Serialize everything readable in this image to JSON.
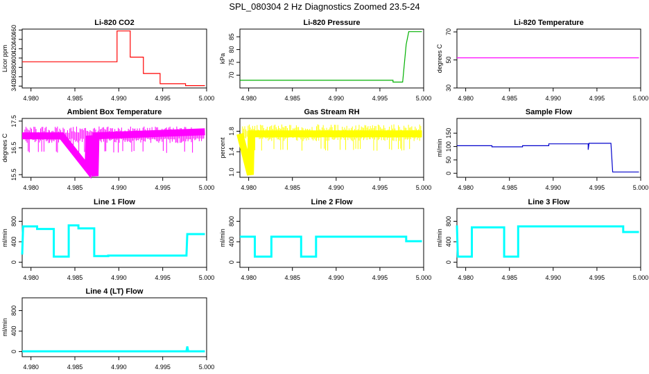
{
  "figure": {
    "title": "SPL_080304  2 Hz Diagnostics Zoomed 23.5-24"
  },
  "chart_data": [
    {
      "type": "line",
      "title": "Li-820 CO2",
      "ylabel": "Licor ppm",
      "xlabel": "",
      "color": "#ff0000",
      "xlim": [
        4.979,
        5.0
      ],
      "ylim": [
        336,
        462
      ],
      "xticks": [
        "4.980",
        "4.985",
        "4.990",
        "4.995",
        "5.000"
      ],
      "yticks": [
        "340",
        "360",
        "380",
        "400",
        "420",
        "440",
        "460"
      ],
      "series": [
        {
          "name": "CO2",
          "points": [
            [
              4.979,
              392
            ],
            [
              4.9898,
              392
            ],
            [
              4.9898,
              458
            ],
            [
              4.9913,
              458
            ],
            [
              4.9913,
              402
            ],
            [
              4.9928,
              402
            ],
            [
              4.9928,
              367
            ],
            [
              4.9947,
              367
            ],
            [
              4.9947,
              345
            ],
            [
              4.9976,
              345
            ],
            [
              4.9976,
              341
            ],
            [
              4.9998,
              341
            ]
          ]
        }
      ]
    },
    {
      "type": "line",
      "title": "Li-820 Pressure",
      "ylabel": "kPa",
      "xlabel": "",
      "color": "#00b000",
      "xlim": [
        4.979,
        5.0
      ],
      "ylim": [
        65,
        88
      ],
      "xticks": [
        "4.980",
        "4.985",
        "4.990",
        "4.995",
        "5.000"
      ],
      "yticks": [
        "70",
        "75",
        "80",
        "85"
      ],
      "series": [
        {
          "name": "Pressure",
          "points": [
            [
              4.979,
              68
            ],
            [
              4.9965,
              68
            ],
            [
              4.9965,
              67.3
            ],
            [
              4.9976,
              67.3
            ],
            [
              4.998,
              82
            ],
            [
              4.9983,
              87
            ],
            [
              4.9998,
              87
            ]
          ]
        }
      ]
    },
    {
      "type": "line",
      "title": "Li-820 Temperature",
      "ylabel": "degrees C",
      "xlabel": "",
      "color": "#ff00ff",
      "xlim": [
        4.979,
        5.0
      ],
      "ylim": [
        30,
        72
      ],
      "xticks": [
        "4.980",
        "4.985",
        "4.990",
        "4.995",
        "5.000"
      ],
      "yticks": [
        "30",
        "50",
        "70"
      ],
      "series": [
        {
          "name": "Temperature",
          "points": [
            [
              4.979,
              51.5
            ],
            [
              4.9998,
              51.5
            ]
          ]
        }
      ]
    },
    {
      "type": "line",
      "title": "Ambient Box Temperature",
      "ylabel": "degrees C",
      "xlabel": "",
      "color": "#ff00ff",
      "xlim": [
        4.979,
        5.0
      ],
      "ylim": [
        15.4,
        17.6
      ],
      "xticks": [
        "4.980",
        "4.985",
        "4.990",
        "4.995",
        "5.000"
      ],
      "yticks": [
        "15.5",
        "16.5",
        "17.5"
      ],
      "series": [
        {
          "name": "Ambient",
          "points": [
            [
              4.979,
              16.95
            ],
            [
              4.9835,
              16.95
            ],
            [
              4.9865,
              15.7
            ],
            [
              4.9866,
              16.95
            ],
            [
              4.9873,
              15.45
            ],
            [
              4.9874,
              16.95
            ],
            [
              4.9998,
              17.1
            ]
          ]
        }
      ]
    },
    {
      "type": "line",
      "title": "Gas Stream RH",
      "ylabel": "percent",
      "xlabel": "",
      "color": "#ffff00",
      "xlim": [
        4.979,
        5.0
      ],
      "ylim": [
        0.9,
        2.05
      ],
      "xticks": [
        "4.980",
        "4.985",
        "4.990",
        "4.995",
        "5.000"
      ],
      "yticks": [
        "1.0",
        "1.4",
        "1.8"
      ],
      "series": [
        {
          "name": "RH",
          "points": [
            [
              4.979,
              1.75
            ],
            [
              4.9802,
              0.95
            ],
            [
              4.9803,
              1.75
            ],
            [
              4.9998,
              1.75
            ]
          ]
        }
      ]
    },
    {
      "type": "line",
      "title": "Sample Flow",
      "ylabel": "ml/min",
      "xlabel": "",
      "color": "#0000cc",
      "xlim": [
        4.979,
        5.0
      ],
      "ylim": [
        -15,
        205
      ],
      "xticks": [
        "4.980",
        "4.985",
        "4.990",
        "4.995",
        "5.000"
      ],
      "yticks": [
        "0",
        "50",
        "100",
        "150"
      ],
      "series": [
        {
          "name": "Sample Flow",
          "points": [
            [
              4.979,
              103
            ],
            [
              4.983,
              103
            ],
            [
              4.983,
              99
            ],
            [
              4.9865,
              99
            ],
            [
              4.9865,
              103
            ],
            [
              4.9895,
              103
            ],
            [
              4.9895,
              110
            ],
            [
              4.994,
              110
            ],
            [
              4.994,
              88
            ],
            [
              4.9941,
              112
            ],
            [
              4.9966,
              112
            ],
            [
              4.9968,
              5
            ],
            [
              4.9998,
              5
            ]
          ]
        }
      ]
    },
    {
      "type": "line",
      "title": "Line 1 Flow",
      "ylabel": "ml/min",
      "xlabel": "",
      "color": "#00ffff",
      "xlim": [
        4.979,
        5.0
      ],
      "ylim": [
        -100,
        1050
      ],
      "xticks": [
        "4.980",
        "4.985",
        "4.990",
        "4.995",
        "5.000"
      ],
      "yticks": [
        "0",
        "400",
        "800"
      ],
      "series": [
        {
          "name": "Line 1",
          "points": [
            [
              4.979,
              150
            ],
            [
              4.9791,
              700
            ],
            [
              4.9807,
              700
            ],
            [
              4.9807,
              650
            ],
            [
              4.9826,
              650
            ],
            [
              4.9826,
              110
            ],
            [
              4.9843,
              110
            ],
            [
              4.9843,
              720
            ],
            [
              4.9854,
              720
            ],
            [
              4.9854,
              660
            ],
            [
              4.9872,
              660
            ],
            [
              4.9872,
              120
            ],
            [
              4.9888,
              120
            ],
            [
              4.9888,
              130
            ],
            [
              4.9977,
              130
            ],
            [
              4.9978,
              550
            ],
            [
              4.9998,
              550
            ]
          ]
        }
      ]
    },
    {
      "type": "line",
      "title": "Line 2 Flow",
      "ylabel": "ml/min",
      "xlabel": "",
      "color": "#00ffff",
      "xlim": [
        4.979,
        5.0
      ],
      "ylim": [
        -100,
        1050
      ],
      "xticks": [
        "4.980",
        "4.985",
        "4.990",
        "4.995",
        "5.000"
      ],
      "yticks": [
        "0",
        "400",
        "800"
      ],
      "series": [
        {
          "name": "Line 2",
          "points": [
            [
              4.979,
              500
            ],
            [
              4.9807,
              500
            ],
            [
              4.9807,
              110
            ],
            [
              4.9826,
              110
            ],
            [
              4.9826,
              500
            ],
            [
              4.986,
              500
            ],
            [
              4.986,
              110
            ],
            [
              4.9877,
              110
            ],
            [
              4.9877,
              500
            ],
            [
              4.998,
              500
            ],
            [
              4.998,
              410
            ],
            [
              4.9998,
              410
            ]
          ]
        }
      ]
    },
    {
      "type": "line",
      "title": "Line 3 Flow",
      "ylabel": "ml/min",
      "xlabel": "",
      "color": "#00ffff",
      "xlim": [
        4.979,
        5.0
      ],
      "ylim": [
        -100,
        1050
      ],
      "xticks": [
        "4.980",
        "4.985",
        "4.990",
        "4.995",
        "5.000"
      ],
      "yticks": [
        "0",
        "400",
        "800"
      ],
      "series": [
        {
          "name": "Line 3",
          "points": [
            [
              4.979,
              720
            ],
            [
              4.9791,
              110
            ],
            [
              4.9807,
              110
            ],
            [
              4.9807,
              680
            ],
            [
              4.9844,
              680
            ],
            [
              4.9844,
              110
            ],
            [
              4.986,
              110
            ],
            [
              4.986,
              700
            ],
            [
              4.998,
              700
            ],
            [
              4.998,
              590
            ],
            [
              4.9998,
              590
            ]
          ]
        }
      ]
    },
    {
      "type": "line",
      "title": "Line 4 (LT) Flow",
      "ylabel": "ml/min",
      "xlabel": "",
      "color": "#00ffff",
      "xlim": [
        4.979,
        5.0
      ],
      "ylim": [
        -100,
        1050
      ],
      "xticks": [
        "4.980",
        "4.985",
        "4.990",
        "4.995",
        "5.000"
      ],
      "yticks": [
        "0",
        "400",
        "800"
      ],
      "series": [
        {
          "name": "Line 4",
          "points": [
            [
              4.979,
              5
            ],
            [
              4.9977,
              5
            ],
            [
              4.9978,
              100
            ],
            [
              4.9979,
              5
            ],
            [
              4.9998,
              5
            ]
          ]
        }
      ]
    }
  ]
}
